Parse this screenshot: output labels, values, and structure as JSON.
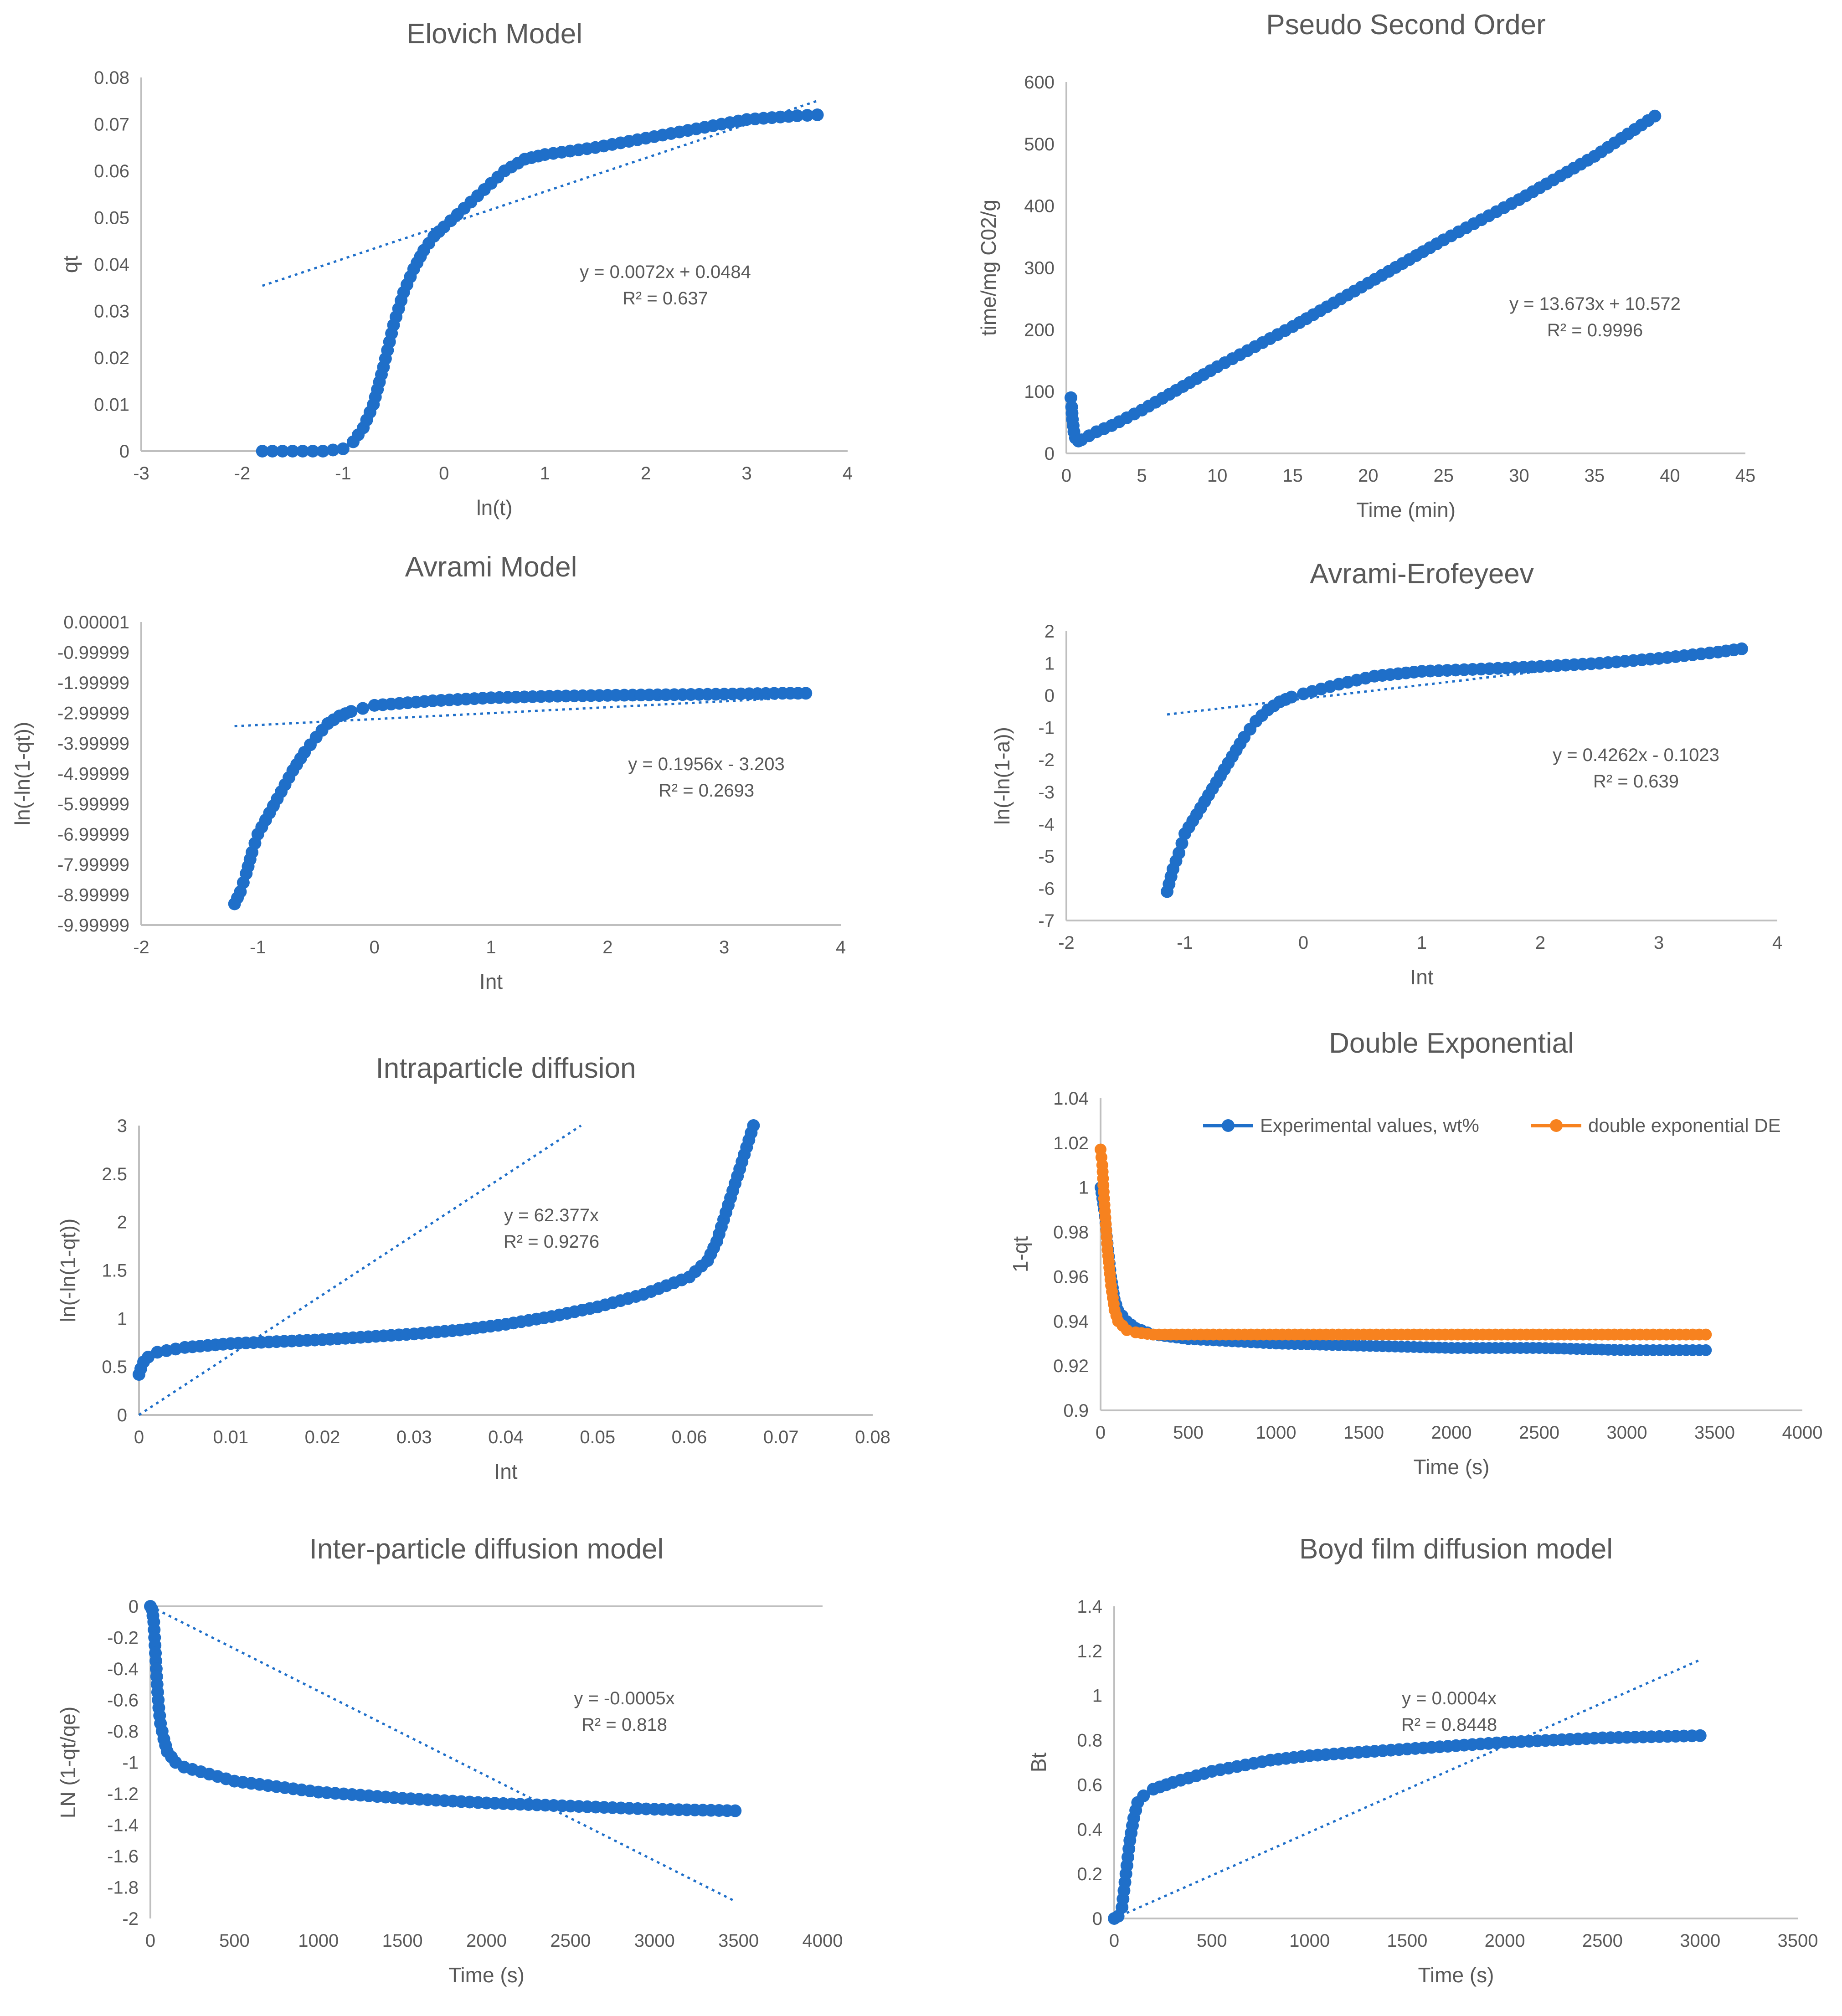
{
  "colors": {
    "series": "#1f6fc9",
    "orange": "#f7821f",
    "axis": "#bfbfbf",
    "text": "#595959"
  },
  "chart_data": [
    {
      "id": "elovich",
      "type": "scatter",
      "title": "Elovich Model",
      "xlabel": "ln(t)",
      "ylabel": "qt",
      "xlim": [
        -3,
        4
      ],
      "ylim": [
        0,
        0.08
      ],
      "xticks": [
        -3,
        -2,
        -1,
        0,
        1,
        2,
        3,
        4
      ],
      "yticks": [
        0,
        0.01,
        0.02,
        0.03,
        0.04,
        0.05,
        0.06,
        0.07,
        0.08
      ],
      "xtick_labels": [
        "-3",
        "-2",
        "-1",
        "0",
        "1",
        "2",
        "3",
        "4"
      ],
      "ytick_labels": [
        "0",
        "0.01",
        "0.02",
        "0.03",
        "0.04",
        "0.05",
        "0.06",
        "0.07",
        "0.08"
      ],
      "series": [
        {
          "name": "data",
          "x": [
            -1.8,
            -1.6,
            -1.4,
            -1.2,
            -1.0,
            -0.9,
            -0.8,
            -0.7,
            -0.6,
            -0.5,
            -0.4,
            -0.3,
            -0.2,
            -0.1,
            0,
            0.2,
            0.4,
            0.6,
            0.8,
            1.0,
            1.5,
            2.0,
            2.5,
            3.0,
            3.5,
            3.7
          ],
          "y": [
            0,
            0,
            0,
            0,
            0.0005,
            0.002,
            0.005,
            0.01,
            0.018,
            0.027,
            0.034,
            0.039,
            0.043,
            0.046,
            0.048,
            0.052,
            0.056,
            0.06,
            0.0625,
            0.0635,
            0.065,
            0.067,
            0.069,
            0.071,
            0.0718,
            0.072
          ]
        }
      ],
      "trendline": {
        "x": [
          -1.8,
          3.7
        ],
        "y": [
          0.0354,
          0.075
        ]
      },
      "equation": "y = 0.0072x + 0.0484",
      "r2": "R² = 0.637"
    },
    {
      "id": "pso",
      "type": "scatter",
      "title": "Pseudo Second Order",
      "xlabel": "Time (min)",
      "ylabel": "time/mg C02/g",
      "xlim": [
        0,
        45
      ],
      "ylim": [
        0,
        600
      ],
      "xticks": [
        0,
        5,
        10,
        15,
        20,
        25,
        30,
        35,
        40,
        45
      ],
      "yticks": [
        0,
        100,
        200,
        300,
        400,
        500,
        600
      ],
      "xtick_labels": [
        "0",
        "5",
        "10",
        "15",
        "20",
        "25",
        "30",
        "35",
        "40",
        "45"
      ],
      "ytick_labels": [
        "0",
        "100",
        "200",
        "300",
        "400",
        "500",
        "600"
      ],
      "series": [
        {
          "name": "data",
          "x": [
            0.3,
            0.35,
            0.4,
            0.5,
            0.6,
            0.8,
            1,
            2,
            3,
            5,
            10,
            15,
            20,
            25,
            30,
            35,
            39
          ],
          "y": [
            90,
            75,
            55,
            35,
            25,
            20,
            22,
            35,
            45,
            70,
            140,
            205,
            275,
            345,
            410,
            480,
            545
          ]
        }
      ],
      "trendline": null,
      "equation": "y = 13.673x + 10.572",
      "r2": "R² = 0.9996"
    },
    {
      "id": "avrami",
      "type": "scatter",
      "title": "Avrami Model",
      "xlabel": "Int",
      "ylabel": "ln(-ln(1-qt))",
      "xlim": [
        -2,
        4
      ],
      "ylim": [
        -9.99999,
        1e-05
      ],
      "xticks": [
        -2,
        -1,
        0,
        1,
        2,
        3,
        4
      ],
      "yticks": [
        1e-05,
        -0.99999,
        -1.99999,
        -2.99999,
        -3.99999,
        -4.99999,
        -5.99999,
        -6.99999,
        -7.99999,
        -8.99999,
        -9.99999
      ],
      "xtick_labels": [
        "-2",
        "-1",
        "0",
        "1",
        "2",
        "3",
        "4"
      ],
      "ytick_labels": [
        "0.00001",
        "-0.99999",
        "-1.99999",
        "-2.99999",
        "-3.99999",
        "-4.99999",
        "-5.99999",
        "-6.99999",
        "-7.99999",
        "-8.99999",
        "-9.99999"
      ],
      "series": [
        {
          "name": "data",
          "x": [
            -1.2,
            -1.15,
            -1.1,
            -1.05,
            -1.0,
            -0.9,
            -0.8,
            -0.7,
            -0.6,
            -0.5,
            -0.4,
            -0.3,
            -0.2,
            -0.1,
            0,
            0.5,
            1,
            1.5,
            2,
            2.5,
            3,
            3.5,
            3.7
          ],
          "y": [
            -9.3,
            -8.9,
            -8.3,
            -7.6,
            -7.0,
            -6.3,
            -5.6,
            -4.9,
            -4.3,
            -3.8,
            -3.35,
            -3.1,
            -2.95,
            -2.85,
            -2.75,
            -2.6,
            -2.5,
            -2.45,
            -2.42,
            -2.4,
            -2.38,
            -2.35,
            -2.35
          ]
        }
      ],
      "trendline": {
        "x": [
          -1.2,
          3.7
        ],
        "y": [
          -3.438,
          -2.479
        ]
      },
      "equation": "y = 0.1956x - 3.203",
      "r2": "R² = 0.2693"
    },
    {
      "id": "erofeyeev",
      "type": "scatter",
      "title": "Avrami-Erofeyeev",
      "xlabel": "Int",
      "ylabel": "ln(-ln(1-a))",
      "xlim": [
        -2,
        4
      ],
      "ylim": [
        -7,
        2
      ],
      "xticks": [
        -2,
        -1,
        0,
        1,
        2,
        3,
        4
      ],
      "yticks": [
        -7,
        -6,
        -5,
        -4,
        -3,
        -2,
        -1,
        0,
        1,
        2
      ],
      "xtick_labels": [
        "-2",
        "-1",
        "0",
        "1",
        "2",
        "3",
        "4"
      ],
      "ytick_labels": [
        "-7",
        "-6",
        "-5",
        "-4",
        "-3",
        "-2",
        "-1",
        "0",
        "1",
        "2"
      ],
      "series": [
        {
          "name": "data",
          "x": [
            -1.15,
            -1.1,
            -1.05,
            -1.0,
            -0.9,
            -0.8,
            -0.7,
            -0.6,
            -0.5,
            -0.4,
            -0.3,
            -0.2,
            -0.1,
            0,
            0.3,
            0.6,
            1,
            1.5,
            2,
            2.5,
            3,
            3.5,
            3.7
          ],
          "y": [
            -6.1,
            -5.4,
            -4.9,
            -4.3,
            -3.7,
            -3.1,
            -2.5,
            -1.9,
            -1.3,
            -0.8,
            -0.45,
            -0.2,
            -0.05,
            0.05,
            0.35,
            0.6,
            0.75,
            0.82,
            0.9,
            1.0,
            1.15,
            1.35,
            1.45
          ]
        }
      ],
      "trendline": {
        "x": [
          -1.15,
          3.7
        ],
        "y": [
          -0.593,
          1.475
        ]
      },
      "equation": "y = 0.4262x - 0.1023",
      "r2": "R² = 0.639"
    },
    {
      "id": "intra",
      "type": "scatter",
      "title": "Intraparticle diffusion",
      "xlabel": "Int",
      "ylabel": "ln(-ln(1-qt))",
      "xlim": [
        0,
        0.08
      ],
      "ylim": [
        0,
        3
      ],
      "xticks": [
        0,
        0.01,
        0.02,
        0.03,
        0.04,
        0.05,
        0.06,
        0.07,
        0.08
      ],
      "yticks": [
        0,
        0.5,
        1,
        1.5,
        2,
        2.5,
        3
      ],
      "xtick_labels": [
        "0",
        "0.01",
        "0.02",
        "0.03",
        "0.04",
        "0.05",
        "0.06",
        "0.07",
        "0.08"
      ],
      "ytick_labels": [
        "0",
        "0.5",
        "1",
        "1.5",
        "2",
        "2.5",
        "3"
      ],
      "series": [
        {
          "name": "data",
          "x": [
            0,
            0.0002,
            0.0005,
            0.001,
            0.002,
            0.005,
            0.01,
            0.015,
            0.02,
            0.025,
            0.03,
            0.035,
            0.04,
            0.045,
            0.05,
            0.055,
            0.06,
            0.062,
            0.063,
            0.064,
            0.065,
            0.066,
            0.067
          ],
          "y": [
            0.42,
            0.48,
            0.55,
            0.6,
            0.65,
            0.7,
            0.74,
            0.76,
            0.78,
            0.81,
            0.84,
            0.88,
            0.94,
            1.02,
            1.12,
            1.25,
            1.43,
            1.6,
            1.8,
            2.1,
            2.4,
            2.7,
            3.0
          ]
        }
      ],
      "trendline": {
        "x": [
          0,
          0.0482
        ],
        "y": [
          0,
          3.0
        ]
      },
      "equation": "y = 62.377x",
      "r2": "R² = 0.9276"
    },
    {
      "id": "double",
      "type": "line",
      "title": "Double Exponential",
      "xlabel": "Time (s)",
      "ylabel": "1-qt",
      "xlim": [
        0,
        4000
      ],
      "ylim": [
        0.9,
        1.04
      ],
      "xticks": [
        0,
        500,
        1000,
        1500,
        2000,
        2500,
        3000,
        3500,
        4000
      ],
      "yticks": [
        0.9,
        0.92,
        0.94,
        0.96,
        0.98,
        1,
        1.02,
        1.04
      ],
      "xtick_labels": [
        "0",
        "500",
        "1000",
        "1500",
        "2000",
        "2500",
        "3000",
        "3500",
        "4000"
      ],
      "ytick_labels": [
        "0.9",
        "0.92",
        "0.94",
        "0.96",
        "0.98",
        "1",
        "1.02",
        "1.04"
      ],
      "series": [
        {
          "name": "Experimental values, wt%",
          "color": "blue",
          "x": [
            0,
            20,
            40,
            60,
            80,
            100,
            150,
            200,
            300,
            500,
            1000,
            1500,
            2000,
            2500,
            3000,
            3450
          ],
          "y": [
            1.0,
            0.99,
            0.975,
            0.96,
            0.95,
            0.945,
            0.94,
            0.937,
            0.934,
            0.932,
            0.93,
            0.929,
            0.928,
            0.928,
            0.927,
            0.927
          ]
        },
        {
          "name": "double exponential DE",
          "color": "orange",
          "x": [
            0,
            10,
            20,
            40,
            60,
            80,
            100,
            150,
            200,
            300,
            500,
            1000,
            1500,
            2000,
            2500,
            3000,
            3450
          ],
          "y": [
            1.017,
            1.01,
            0.995,
            0.972,
            0.956,
            0.945,
            0.94,
            0.936,
            0.935,
            0.934,
            0.934,
            0.934,
            0.934,
            0.934,
            0.934,
            0.934,
            0.934
          ]
        }
      ],
      "legend": [
        "Experimental values, wt%",
        "double exponential DE"
      ]
    },
    {
      "id": "inter",
      "type": "scatter",
      "title": "Inter-particle diffusion model",
      "xlabel": "Time (s)",
      "ylabel": "LN (1-qt/qe)",
      "xlim": [
        0,
        4000
      ],
      "ylim": [
        -2,
        0
      ],
      "xticks": [
        0,
        500,
        1000,
        1500,
        2000,
        2500,
        3000,
        3500,
        4000
      ],
      "yticks": [
        0,
        -0.2,
        -0.4,
        -0.6,
        -0.8,
        -1,
        -1.2,
        -1.4,
        -1.6,
        -1.8,
        -2
      ],
      "xtick_labels": [
        "0",
        "500",
        "1000",
        "1500",
        "2000",
        "2500",
        "3000",
        "3500",
        "4000"
      ],
      "ytick_labels": [
        "0",
        "-0.2",
        "-0.4",
        "-0.6",
        "-0.8",
        "-1",
        "-1.2",
        "-1.4",
        "-1.6",
        "-1.8",
        "-2"
      ],
      "series": [
        {
          "name": "data",
          "x": [
            0,
            10,
            20,
            30,
            40,
            50,
            60,
            80,
            100,
            150,
            200,
            300,
            500,
            1000,
            1500,
            2000,
            2500,
            3000,
            3480
          ],
          "y": [
            0,
            -0.02,
            -0.1,
            -0.3,
            -0.5,
            -0.65,
            -0.75,
            -0.85,
            -0.93,
            -1.0,
            -1.03,
            -1.06,
            -1.12,
            -1.19,
            -1.23,
            -1.26,
            -1.28,
            -1.3,
            -1.31
          ]
        }
      ],
      "trendline": {
        "x": [
          0,
          3480
        ],
        "y": [
          0,
          -1.89
        ]
      },
      "equation": "y = -0.0005x",
      "r2": "R² = 0.818"
    },
    {
      "id": "boyd",
      "type": "scatter",
      "title": "Boyd film diffusion model",
      "xlabel": "Time (s)",
      "ylabel": "Bt",
      "xlim": [
        0,
        3500
      ],
      "ylim": [
        0,
        1.4
      ],
      "xticks": [
        0,
        500,
        1000,
        1500,
        2000,
        2500,
        3000,
        3500
      ],
      "yticks": [
        0,
        0.2,
        0.4,
        0.6,
        0.8,
        1,
        1.2,
        1.4
      ],
      "xtick_labels": [
        "0",
        "500",
        "1000",
        "1500",
        "2000",
        "2500",
        "3000",
        "3500"
      ],
      "ytick_labels": [
        "0",
        "0.2",
        "0.4",
        "0.6",
        "0.8",
        "1",
        "1.2",
        "1.4"
      ],
      "series": [
        {
          "name": "data",
          "x": [
            0,
            20,
            40,
            60,
            80,
            100,
            120,
            150,
            200,
            300,
            500,
            800,
            1000,
            1500,
            2000,
            2500,
            3000
          ],
          "y": [
            0,
            0.01,
            0.05,
            0.2,
            0.35,
            0.45,
            0.52,
            0.55,
            0.58,
            0.61,
            0.66,
            0.71,
            0.73,
            0.76,
            0.79,
            0.81,
            0.82
          ]
        }
      ],
      "trendline": {
        "x": [
          0,
          3000
        ],
        "y": [
          0,
          1.16
        ]
      },
      "equation": "y = 0.0004x",
      "r2": "R² = 0.8448"
    }
  ]
}
